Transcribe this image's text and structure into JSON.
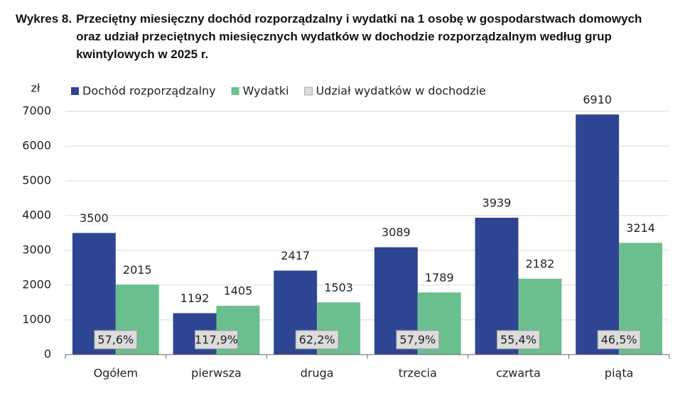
{
  "chart_data": {
    "type": "bar",
    "title_label": "Wykres 8.",
    "title": "Przeciętny miesięczny dochód rozporządzalny i wydatki na 1 osobę w gospodarstwach domowych oraz udział przeciętnych miesięcznych wydatków w dochodzie rozporządzalnym według grup kwintylowych w 2025 r.",
    "y_label": "zł",
    "categories": [
      "Ogółem",
      "pierwsza",
      "druga",
      "trzecia",
      "czwarta",
      "piąta"
    ],
    "series": [
      {
        "name": "Dochód rozporządzalny",
        "color": "#2e4593",
        "values": [
          3500,
          1192,
          2417,
          3089,
          3939,
          6910
        ]
      },
      {
        "name": "Wydatki",
        "color": "#6bbf8e",
        "values": [
          2015,
          1405,
          1503,
          1789,
          2182,
          3214
        ]
      }
    ],
    "shares": {
      "name": "Udział wydatków w dochodzie",
      "color": "#dcdcdc",
      "values": [
        57.6,
        117.9,
        62.2,
        57.9,
        55.4,
        46.5
      ],
      "value_labels": [
        "57,6%",
        "117,9%",
        "62,2%",
        "57,9%",
        "55,4%",
        "46,5%"
      ]
    },
    "ylim": [
      0,
      7000
    ],
    "yticks": [
      0,
      1000,
      2000,
      3000,
      4000,
      5000,
      6000,
      7000
    ],
    "grid": true
  }
}
